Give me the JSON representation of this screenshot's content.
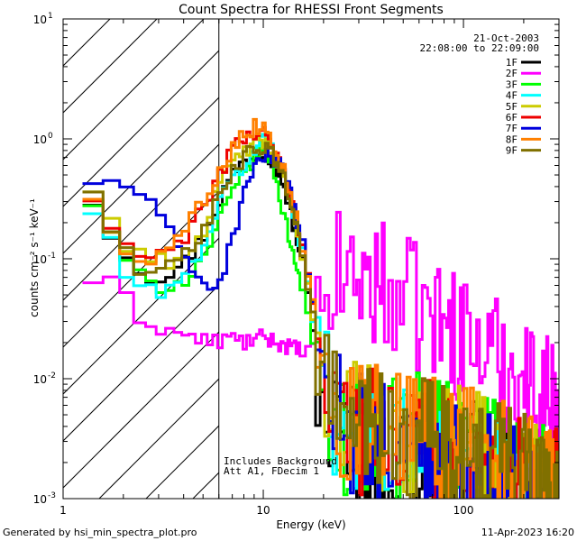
{
  "chart_data": {
    "type": "line",
    "title": "Count Spectra for RHESSI Front Segments",
    "xlabel": "Energy (keV)",
    "ylabel": "counts cm⁻² s⁻¹ keV⁻¹",
    "x_scale": "log",
    "y_scale": "log",
    "xlim": [
      1,
      300
    ],
    "ylim": [
      0.001,
      10
    ],
    "x_ticks": [
      {
        "value": 1,
        "label": "1"
      },
      {
        "value": 10,
        "label": "10"
      },
      {
        "value": 100,
        "label": "100"
      }
    ],
    "y_ticks": [
      {
        "value": 10,
        "label": "10",
        "exp": "1"
      },
      {
        "value": 1,
        "label": "10",
        "exp": "0"
      },
      {
        "value": 0.1,
        "label": "10",
        "exp": "-1"
      },
      {
        "value": 0.01,
        "label": "10",
        "exp": "-2"
      },
      {
        "value": 0.001,
        "label": "10",
        "exp": "-3"
      }
    ],
    "hatched_region": {
      "x_from": 1,
      "x_to": 6
    },
    "threshold_line_x": 6,
    "legend": {
      "date": "21-Oct-2003",
      "time_range": "22:08:00 to 22:09:00",
      "position": "top-right"
    },
    "annotations": [
      "Includes Background",
      "Att A1, FDecim  1"
    ],
    "series": [
      {
        "name": "1F",
        "color": "#000000",
        "anchors": [
          [
            1.25,
            0.42
          ],
          [
            1.6,
            0.21
          ],
          [
            2.0,
            0.12
          ],
          [
            2.5,
            0.075
          ],
          [
            3.0,
            0.07
          ],
          [
            4.0,
            0.09
          ],
          [
            5.0,
            0.15
          ],
          [
            6.0,
            0.3
          ],
          [
            7.0,
            0.5
          ],
          [
            8.0,
            0.65
          ],
          [
            9.0,
            0.72
          ],
          [
            10.0,
            0.8
          ],
          [
            11.0,
            0.7
          ],
          [
            12.5,
            0.45
          ],
          [
            14.0,
            0.2
          ],
          [
            16.0,
            0.08
          ],
          [
            18.0,
            0.02
          ],
          [
            20.0,
            0.005
          ],
          [
            25.0,
            0.003
          ],
          [
            35.0,
            0.0025
          ],
          [
            50.0,
            0.002
          ],
          [
            70.0,
            0.0025
          ],
          [
            100.0,
            0.002
          ],
          [
            150.0,
            0.0015
          ],
          [
            200.0,
            0.0012
          ],
          [
            280.0,
            0.001
          ]
        ]
      },
      {
        "name": "2F",
        "color": "#ff00ff",
        "anchors": [
          [
            1.25,
            0.07
          ],
          [
            1.5,
            0.065
          ],
          [
            1.8,
            0.06
          ],
          [
            2.0,
            0.05
          ],
          [
            2.3,
            0.035
          ],
          [
            2.8,
            0.028
          ],
          [
            3.5,
            0.025
          ],
          [
            4.5,
            0.022
          ],
          [
            5.5,
            0.02
          ],
          [
            7.0,
            0.022
          ],
          [
            8.0,
            0.02
          ],
          [
            10.0,
            0.022
          ],
          [
            12.0,
            0.02
          ],
          [
            14.0,
            0.018
          ],
          [
            16.0,
            0.017
          ],
          [
            18.0,
            0.018
          ],
          [
            20.0,
            0.03
          ],
          [
            22.0,
            0.06
          ],
          [
            25.0,
            0.08
          ],
          [
            30.0,
            0.07
          ],
          [
            40.0,
            0.06
          ],
          [
            50.0,
            0.045
          ],
          [
            60.0,
            0.038
          ],
          [
            80.0,
            0.028
          ],
          [
            100.0,
            0.022
          ],
          [
            130.0,
            0.017
          ],
          [
            170.0,
            0.012
          ],
          [
            220.0,
            0.009
          ],
          [
            280.0,
            0.007
          ]
        ]
      },
      {
        "name": "3F",
        "color": "#00ff00",
        "anchors": [
          [
            1.25,
            0.42
          ],
          [
            1.6,
            0.19
          ],
          [
            2.0,
            0.1
          ],
          [
            2.5,
            0.065
          ],
          [
            3.0,
            0.06
          ],
          [
            4.0,
            0.065
          ],
          [
            5.0,
            0.1
          ],
          [
            6.0,
            0.2
          ],
          [
            7.0,
            0.35
          ],
          [
            8.0,
            0.5
          ],
          [
            9.0,
            0.7
          ],
          [
            10.0,
            0.9
          ],
          [
            11.0,
            0.65
          ],
          [
            12.0,
            0.35
          ],
          [
            13.5,
            0.15
          ],
          [
            15.0,
            0.08
          ],
          [
            17.0,
            0.03
          ],
          [
            19.0,
            0.007
          ],
          [
            22.0,
            0.004
          ],
          [
            30.0,
            0.0035
          ],
          [
            40.0,
            0.003
          ],
          [
            55.0,
            0.0035
          ],
          [
            75.0,
            0.003
          ],
          [
            100.0,
            0.0025
          ],
          [
            150.0,
            0.002
          ],
          [
            200.0,
            0.0015
          ],
          [
            280.0,
            0.0012
          ]
        ]
      },
      {
        "name": "4F",
        "color": "#00ffff",
        "anchors": [
          [
            1.25,
            0.35
          ],
          [
            1.5,
            0.2
          ],
          [
            1.8,
            0.13
          ],
          [
            2.0,
            0.08
          ],
          [
            2.5,
            0.05
          ],
          [
            3.0,
            0.055
          ],
          [
            4.0,
            0.065
          ],
          [
            5.0,
            0.13
          ],
          [
            6.0,
            0.28
          ],
          [
            7.0,
            0.45
          ],
          [
            8.0,
            0.6
          ],
          [
            9.0,
            0.75
          ],
          [
            10.0,
            1.05
          ],
          [
            11.0,
            0.9
          ],
          [
            12.5,
            0.55
          ],
          [
            14.0,
            0.25
          ],
          [
            16.0,
            0.1
          ],
          [
            18.0,
            0.03
          ],
          [
            20.0,
            0.008
          ],
          [
            25.0,
            0.004
          ],
          [
            35.0,
            0.003
          ],
          [
            50.0,
            0.0025
          ],
          [
            70.0,
            0.0025
          ],
          [
            100.0,
            0.002
          ],
          [
            150.0,
            0.0015
          ],
          [
            200.0,
            0.0012
          ],
          [
            280.0,
            0.001
          ]
        ]
      },
      {
        "name": "5F",
        "color": "#cccc00",
        "anchors": [
          [
            1.25,
            0.48
          ],
          [
            1.6,
            0.27
          ],
          [
            2.0,
            0.14
          ],
          [
            2.5,
            0.11
          ],
          [
            3.0,
            0.095
          ],
          [
            4.0,
            0.1
          ],
          [
            5.0,
            0.17
          ],
          [
            6.0,
            0.38
          ],
          [
            7.0,
            0.6
          ],
          [
            8.0,
            0.8
          ],
          [
            9.0,
            0.9
          ],
          [
            10.0,
            0.95
          ],
          [
            11.0,
            0.75
          ],
          [
            12.5,
            0.5
          ],
          [
            14.0,
            0.25
          ],
          [
            16.0,
            0.1
          ],
          [
            18.0,
            0.03
          ],
          [
            20.0,
            0.008
          ],
          [
            25.0,
            0.005
          ],
          [
            35.0,
            0.004
          ],
          [
            50.0,
            0.003
          ],
          [
            70.0,
            0.003
          ],
          [
            100.0,
            0.0025
          ],
          [
            150.0,
            0.002
          ],
          [
            200.0,
            0.0015
          ],
          [
            280.0,
            0.0012
          ]
        ]
      },
      {
        "name": "6F",
        "color": "#ee0000",
        "anchors": [
          [
            1.25,
            0.4
          ],
          [
            1.6,
            0.22
          ],
          [
            2.0,
            0.13
          ],
          [
            2.5,
            0.1
          ],
          [
            3.0,
            0.1
          ],
          [
            4.0,
            0.15
          ],
          [
            5.0,
            0.25
          ],
          [
            6.0,
            0.5
          ],
          [
            7.0,
            0.8
          ],
          [
            8.0,
            1.0
          ],
          [
            9.0,
            1.1
          ],
          [
            10.0,
            1.2
          ],
          [
            11.0,
            0.95
          ],
          [
            12.5,
            0.55
          ],
          [
            14.0,
            0.3
          ],
          [
            16.0,
            0.12
          ],
          [
            18.0,
            0.04
          ],
          [
            20.0,
            0.008
          ],
          [
            25.0,
            0.004
          ],
          [
            35.0,
            0.0035
          ],
          [
            50.0,
            0.003
          ],
          [
            70.0,
            0.003
          ],
          [
            100.0,
            0.002
          ],
          [
            150.0,
            0.0018
          ],
          [
            200.0,
            0.0014
          ],
          [
            280.0,
            0.0011
          ]
        ]
      },
      {
        "name": "7F",
        "color": "#0000dd",
        "anchors": [
          [
            1.25,
            0.4
          ],
          [
            1.5,
            0.42
          ],
          [
            1.8,
            0.48
          ],
          [
            2.0,
            0.42
          ],
          [
            2.5,
            0.35
          ],
          [
            3.0,
            0.22
          ],
          [
            3.5,
            0.15
          ],
          [
            4.0,
            0.1
          ],
          [
            5.0,
            0.065
          ],
          [
            5.6,
            0.06
          ],
          [
            6.0,
            0.06
          ],
          [
            7.0,
            0.14
          ],
          [
            8.0,
            0.35
          ],
          [
            9.0,
            0.6
          ],
          [
            10.0,
            0.72
          ],
          [
            11.0,
            0.7
          ],
          [
            12.5,
            0.55
          ],
          [
            14.0,
            0.3
          ],
          [
            16.0,
            0.12
          ],
          [
            18.0,
            0.04
          ],
          [
            20.0,
            0.01
          ],
          [
            25.0,
            0.004
          ],
          [
            35.0,
            0.003
          ],
          [
            50.0,
            0.0025
          ],
          [
            70.0,
            0.002
          ],
          [
            100.0,
            0.002
          ],
          [
            150.0,
            0.0015
          ],
          [
            200.0,
            0.0012
          ],
          [
            280.0,
            0.001
          ]
        ]
      },
      {
        "name": "8F",
        "color": "#ff8000",
        "anchors": [
          [
            1.25,
            0.4
          ],
          [
            1.6,
            0.22
          ],
          [
            2.0,
            0.13
          ],
          [
            2.5,
            0.1
          ],
          [
            3.0,
            0.1
          ],
          [
            4.0,
            0.17
          ],
          [
            5.0,
            0.3
          ],
          [
            6.0,
            0.55
          ],
          [
            7.0,
            0.85
          ],
          [
            8.0,
            1.1
          ],
          [
            9.0,
            1.25
          ],
          [
            10.0,
            1.3
          ],
          [
            11.0,
            1.0
          ],
          [
            12.5,
            0.6
          ],
          [
            14.0,
            0.3
          ],
          [
            16.0,
            0.12
          ],
          [
            18.0,
            0.04
          ],
          [
            20.0,
            0.009
          ],
          [
            25.0,
            0.005
          ],
          [
            35.0,
            0.004
          ],
          [
            50.0,
            0.0035
          ],
          [
            70.0,
            0.003
          ],
          [
            100.0,
            0.0025
          ],
          [
            150.0,
            0.002
          ],
          [
            200.0,
            0.0015
          ],
          [
            280.0,
            0.0012
          ]
        ]
      },
      {
        "name": "9F",
        "color": "#807000",
        "anchors": [
          [
            1.25,
            0.45
          ],
          [
            1.6,
            0.25
          ],
          [
            2.0,
            0.12
          ],
          [
            2.5,
            0.08
          ],
          [
            3.0,
            0.075
          ],
          [
            4.0,
            0.1
          ],
          [
            5.0,
            0.16
          ],
          [
            6.0,
            0.35
          ],
          [
            7.0,
            0.55
          ],
          [
            8.0,
            0.7
          ],
          [
            9.0,
            0.8
          ],
          [
            10.0,
            0.85
          ],
          [
            11.0,
            0.75
          ],
          [
            12.5,
            0.5
          ],
          [
            14.0,
            0.25
          ],
          [
            16.0,
            0.1
          ],
          [
            18.0,
            0.03
          ],
          [
            20.0,
            0.008
          ],
          [
            25.0,
            0.004
          ],
          [
            35.0,
            0.0035
          ],
          [
            50.0,
            0.003
          ],
          [
            70.0,
            0.003
          ],
          [
            100.0,
            0.0025
          ],
          [
            150.0,
            0.002
          ],
          [
            200.0,
            0.0015
          ],
          [
            280.0,
            0.0012
          ]
        ]
      }
    ]
  },
  "footer": {
    "generated_by": "Generated by hsi_min_spectra_plot.pro",
    "timestamp": "11-Apr-2023 16:20"
  }
}
